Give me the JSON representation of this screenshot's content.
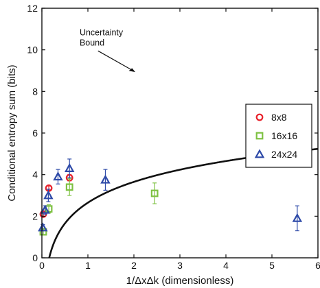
{
  "chart_data": {
    "type": "scatter",
    "title": "",
    "xlabel": "1/ΔxΔk (dimensionless)",
    "ylabel": "Conditional entropy sum (bits)",
    "xlim": [
      0,
      6
    ],
    "ylim": [
      0,
      12
    ],
    "xticks": [
      0,
      1,
      2,
      3,
      4,
      5,
      6
    ],
    "yticks": [
      0,
      2,
      4,
      6,
      8,
      10,
      12
    ],
    "grid": false,
    "legend_position": "right",
    "bound": {
      "label_line1": "Uncertainty",
      "label_line2": "Bound",
      "formula": "log2(2*pi*x)",
      "color": "#111111"
    },
    "series": [
      {
        "name": "8x8",
        "marker": "circle",
        "color": "#e8202a",
        "points": [
          {
            "x": 0.03,
            "y": 2.1,
            "err": 0.1
          },
          {
            "x": 0.15,
            "y": 3.35,
            "err": 0.1
          },
          {
            "x": 0.6,
            "y": 3.85,
            "err": 0.15
          }
        ]
      },
      {
        "name": "16x16",
        "marker": "square",
        "color": "#7ec142",
        "points": [
          {
            "x": 0.03,
            "y": 1.25,
            "err": 0.15
          },
          {
            "x": 0.15,
            "y": 2.35,
            "err": 0.2
          },
          {
            "x": 0.6,
            "y": 3.4,
            "err": 0.4
          },
          {
            "x": 2.45,
            "y": 3.1,
            "err": 0.5
          }
        ]
      },
      {
        "name": "24x24",
        "marker": "triangle",
        "color": "#2e4aa8",
        "points": [
          {
            "x": 0.02,
            "y": 1.45,
            "err": 0.15
          },
          {
            "x": 0.07,
            "y": 2.3,
            "err": 0.2
          },
          {
            "x": 0.14,
            "y": 3.0,
            "err": 0.3
          },
          {
            "x": 0.35,
            "y": 3.9,
            "err": 0.35
          },
          {
            "x": 0.6,
            "y": 4.3,
            "err": 0.45
          },
          {
            "x": 1.38,
            "y": 3.75,
            "err": 0.5
          },
          {
            "x": 5.55,
            "y": 1.9,
            "err": 0.6
          }
        ]
      }
    ]
  }
}
